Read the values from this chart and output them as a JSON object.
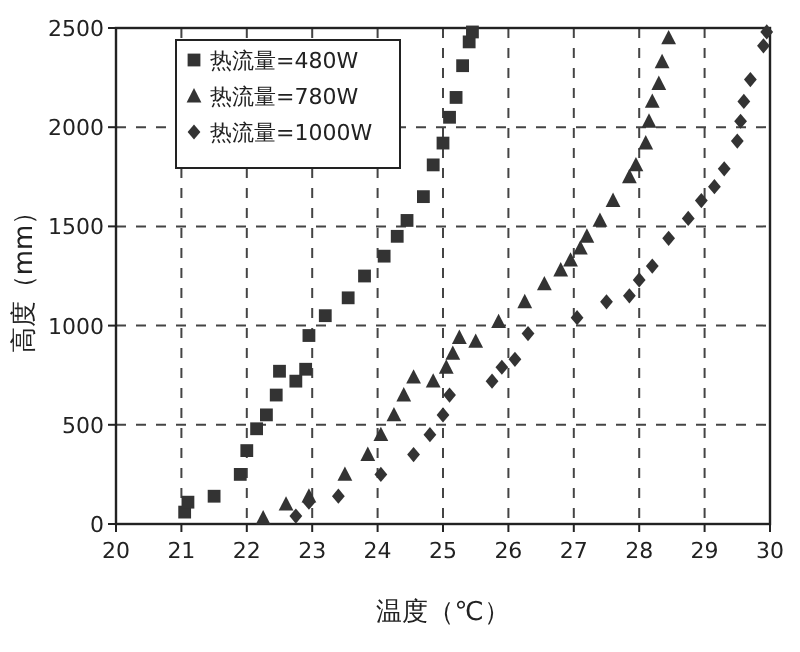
{
  "chart_data": {
    "type": "scatter",
    "xlabel": "温度（℃）",
    "ylabel": "高度（mm）",
    "xlim": [
      20,
      30
    ],
    "ylim": [
      0,
      2500
    ],
    "xticks": [
      20,
      21,
      22,
      23,
      24,
      25,
      26,
      27,
      28,
      29,
      30
    ],
    "yticks": [
      0,
      500,
      1000,
      1500,
      2000,
      2500
    ],
    "grid": true,
    "legend": "top left",
    "series": [
      {
        "name": "热流量=480W",
        "color": "#333333",
        "marker": "square",
        "x": [
          21.05,
          21.1,
          21.5,
          21.9,
          22.0,
          22.15,
          22.3,
          22.45,
          22.5,
          22.75,
          22.9,
          22.95,
          23.2,
          23.55,
          23.8,
          24.1,
          24.3,
          24.45,
          24.7,
          24.85,
          25.0,
          25.1,
          25.2,
          25.3,
          25.4,
          25.45
        ],
        "values": [
          60,
          110,
          140,
          250,
          370,
          480,
          550,
          650,
          770,
          720,
          780,
          950,
          1050,
          1140,
          1250,
          1350,
          1450,
          1530,
          1650,
          1810,
          1920,
          2050,
          2150,
          2310,
          2430,
          2480
        ]
      },
      {
        "name": "热流量=780W",
        "color": "#333333",
        "marker": "triangle",
        "x": [
          22.25,
          22.6,
          22.95,
          23.5,
          23.85,
          24.05,
          24.25,
          24.4,
          24.55,
          24.85,
          25.05,
          25.15,
          25.25,
          25.5,
          25.85,
          26.25,
          26.55,
          26.8,
          26.95,
          27.1,
          27.2,
          27.4,
          27.6,
          27.85,
          27.95,
          28.1,
          28.15,
          28.2,
          28.3,
          28.35,
          28.45
        ],
        "values": [
          30,
          100,
          140,
          250,
          350,
          450,
          550,
          650,
          740,
          720,
          790,
          860,
          940,
          920,
          1020,
          1120,
          1210,
          1280,
          1330,
          1390,
          1450,
          1530,
          1630,
          1750,
          1810,
          1920,
          2030,
          2130,
          2220,
          2330,
          2450
        ]
      },
      {
        "name": "热流量=1000W",
        "color": "#333333",
        "marker": "diamond",
        "x": [
          22.75,
          22.95,
          23.4,
          24.05,
          24.55,
          24.8,
          25.0,
          25.1,
          25.75,
          25.9,
          26.1,
          26.3,
          27.05,
          27.5,
          27.85,
          28.0,
          28.2,
          28.45,
          28.75,
          28.95,
          29.15,
          29.3,
          29.5,
          29.55,
          29.6,
          29.7,
          29.9,
          29.95
        ],
        "values": [
          40,
          110,
          140,
          250,
          350,
          450,
          550,
          650,
          720,
          790,
          830,
          960,
          1040,
          1120,
          1150,
          1230,
          1300,
          1440,
          1540,
          1630,
          1700,
          1790,
          1930,
          2030,
          2130,
          2240,
          2410,
          2480
        ]
      }
    ]
  }
}
